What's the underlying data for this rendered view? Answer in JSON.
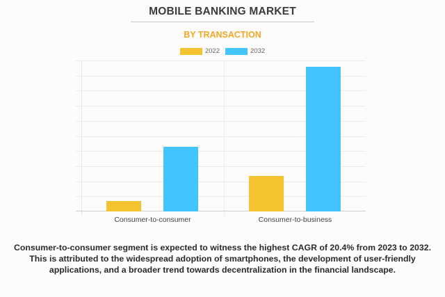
{
  "header": {
    "title": "MOBILE BANKING MARKET",
    "subtitle": "BY TRANSACTION"
  },
  "legend": [
    {
      "label": "2022",
      "color": "#f4c430"
    },
    {
      "label": "2032",
      "color": "#42c4ff"
    }
  ],
  "caption": "Consumer-to-consumer segment is expected to witness the highest CAGR of 20.4% from 2023 to 2032. This is attributed to the widespread adoption of smartphones, the development of user-friendly applications, and a broader trend towards decentralization in the financial landscape.",
  "chart_data": {
    "type": "bar",
    "title": "MOBILE BANKING MARKET",
    "subtitle": "BY TRANSACTION",
    "categories": [
      "Consumer-to-consumer",
      "Consumer-to-business"
    ],
    "series": [
      {
        "name": "2022",
        "color": "#f4c430",
        "values": [
          0.7,
          2.35
        ]
      },
      {
        "name": "2032",
        "color": "#42c4ff",
        "values": [
          4.3,
          9.6
        ]
      }
    ],
    "xlabel": "",
    "ylabel": "",
    "ylim": [
      0,
      10
    ],
    "y_ticks_visible": false,
    "grid": true,
    "gridline_count": 10,
    "legend_position": "top"
  }
}
